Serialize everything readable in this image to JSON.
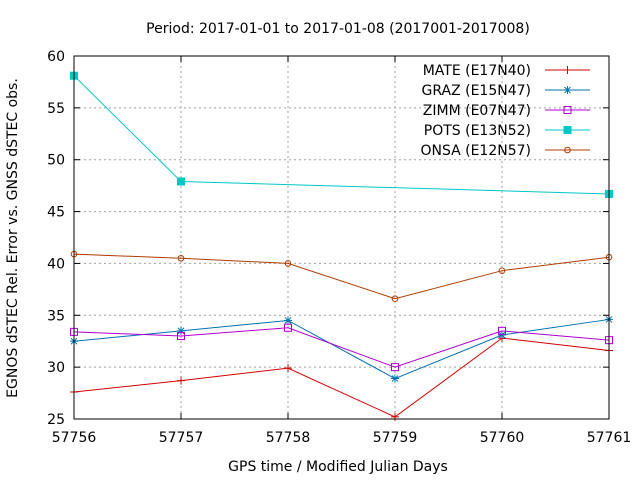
{
  "chart_data": {
    "type": "line",
    "title": "Period: 2017-01-01 to 2017-01-08 (2017001-2017008)",
    "xlabel": "GPS time / Modified Julian Days",
    "ylabel": "EGNOS dSTEC Rel. Error vs. GNSS dSTEC obs.",
    "xlim": [
      57756,
      57761
    ],
    "ylim": [
      25,
      60
    ],
    "xticks": [
      57756,
      57757,
      57758,
      57759,
      57760,
      57761
    ],
    "yticks": [
      25,
      30,
      35,
      40,
      45,
      50,
      55,
      60
    ],
    "grid": true,
    "legend_position": "top-right",
    "series": [
      {
        "name": "MATE (E17N40)",
        "color": "#d40000",
        "marker": "plus",
        "x": [
          57756,
          57757,
          57758,
          57759,
          57760,
          57761
        ],
        "values": [
          27.6,
          28.7,
          29.9,
          25.2,
          32.8,
          31.6
        ]
      },
      {
        "name": "GRAZ (E15N47)",
        "color": "#0072b2",
        "marker": "star",
        "x": [
          57756,
          57757,
          57758,
          57759,
          57760,
          57761
        ],
        "values": [
          32.5,
          33.5,
          34.5,
          28.9,
          33.1,
          34.6
        ]
      },
      {
        "name": "ZIMM (E07N47)",
        "color": "#b000d0",
        "marker": "square-open",
        "x": [
          57756,
          57757,
          57758,
          57759,
          57760,
          57761
        ],
        "values": [
          33.4,
          33.0,
          33.8,
          30.0,
          33.5,
          32.6
        ]
      },
      {
        "name": "POTS (E13N52)",
        "color": "#00c8c8",
        "marker": "square-filled",
        "x": [
          57756,
          57757,
          57761
        ],
        "values": [
          58.1,
          47.9,
          46.7
        ]
      },
      {
        "name": "ONSA (E12N57)",
        "color": "#b03c00",
        "marker": "circle-open",
        "x": [
          57756,
          57757,
          57758,
          57759,
          57760,
          57761
        ],
        "values": [
          40.9,
          40.5,
          40.0,
          36.6,
          39.3,
          40.6
        ]
      }
    ]
  }
}
